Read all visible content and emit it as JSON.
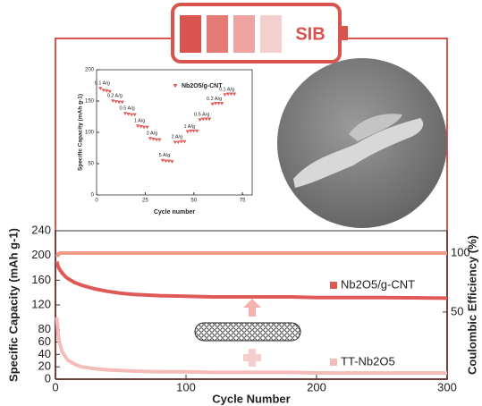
{
  "badge": "SIB",
  "chart_data": [
    {
      "type": "scatter",
      "xlabel": "Cycle number",
      "ylabel": "Specific Capacity (mAh g-1)",
      "xlim": [
        0,
        80
      ],
      "ylim": [
        0,
        200
      ],
      "xticks": [
        0,
        25,
        50,
        75
      ],
      "yticks": [
        0,
        50,
        100,
        150,
        200
      ],
      "legend": "top",
      "rate_labels": [
        "0.1 A/g",
        "0.2 A/g",
        "0.5 A/g",
        "1 A/g",
        "2 A/g",
        "5 A/g",
        "2 A/g",
        "1 A/g",
        "0.5 A/g",
        "0.2 A/g",
        "0.1 A/g"
      ],
      "series": [
        {
          "name": "Nb2O5/g-CNT",
          "color": "#e0605c",
          "x": [
            2,
            3.6,
            5.2,
            6.8,
            8.4,
            10,
            11.6,
            13.2,
            14.8,
            16.4,
            18,
            19.6,
            21.2,
            22.8,
            24.4,
            26,
            27.6,
            29.2,
            30.8,
            32.4,
            34,
            35.6,
            37.2,
            38.8,
            40.4,
            42,
            43.6,
            45.2,
            46.8,
            48.4,
            50,
            51.6,
            53.2,
            54.8,
            56.4,
            58,
            59.6,
            61.2,
            62.8,
            64.4,
            66,
            67.6,
            69.2,
            70.8
          ],
          "values": [
            170,
            167,
            166,
            165,
            150,
            149,
            148,
            148,
            130,
            129,
            128,
            128,
            110,
            109,
            108,
            108,
            90,
            89,
            88,
            88,
            55,
            54,
            54,
            53,
            84,
            84,
            85,
            85,
            101,
            102,
            102,
            102,
            120,
            121,
            121,
            121,
            145,
            146,
            146,
            146,
            160,
            161,
            161,
            161
          ]
        }
      ]
    },
    {
      "type": "line",
      "xlabel": "Cycle Number",
      "ylabel": "Specific Capacity (mAh g-1)",
      "y2label": "Coulombic Efficiency (%)",
      "xlim": [
        0,
        300
      ],
      "ylim": [
        0,
        240
      ],
      "y2lim": [
        -7,
        119
      ],
      "xticks": [
        0,
        100,
        200,
        300
      ],
      "yticks": [
        0,
        20,
        40,
        60,
        80,
        120,
        160,
        200,
        240
      ],
      "y2ticks": [
        50,
        100
      ],
      "legend": "right",
      "series": [
        {
          "name": "Nb2O5/g-CNT",
          "color": "#df5a56",
          "x": [
            1,
            2,
            3,
            5,
            8,
            10,
            15,
            20,
            30,
            40,
            50,
            60,
            80,
            100,
            120,
            150,
            180,
            200,
            250,
            300
          ],
          "values": [
            190,
            183,
            178,
            172,
            165,
            162,
            156,
            152,
            146,
            142,
            139,
            137,
            135,
            134,
            133,
            133,
            133,
            132,
            132,
            131
          ]
        },
        {
          "name": "TT-Nb2O5",
          "color": "#f4bcb8",
          "x": [
            1,
            2,
            3,
            5,
            8,
            10,
            15,
            20,
            30,
            40,
            50,
            60,
            80,
            100,
            120,
            150,
            180,
            200,
            250,
            300
          ],
          "values": [
            100,
            75,
            60,
            45,
            35,
            30,
            24,
            20,
            17,
            15,
            14,
            13,
            12,
            12,
            11,
            11,
            11,
            10,
            10,
            10
          ]
        },
        {
          "name": null,
          "color": "#f19a86",
          "axis": "y2",
          "x": [
            1,
            2,
            3,
            5,
            8,
            10,
            15,
            20,
            30,
            40,
            50,
            60,
            80,
            100,
            120,
            150,
            180,
            200,
            250,
            300
          ],
          "values": [
            97,
            99,
            100,
            100,
            100,
            100,
            100,
            100,
            100,
            100,
            100,
            100,
            100,
            100,
            100,
            100,
            100,
            100,
            100,
            100
          ]
        }
      ]
    }
  ]
}
